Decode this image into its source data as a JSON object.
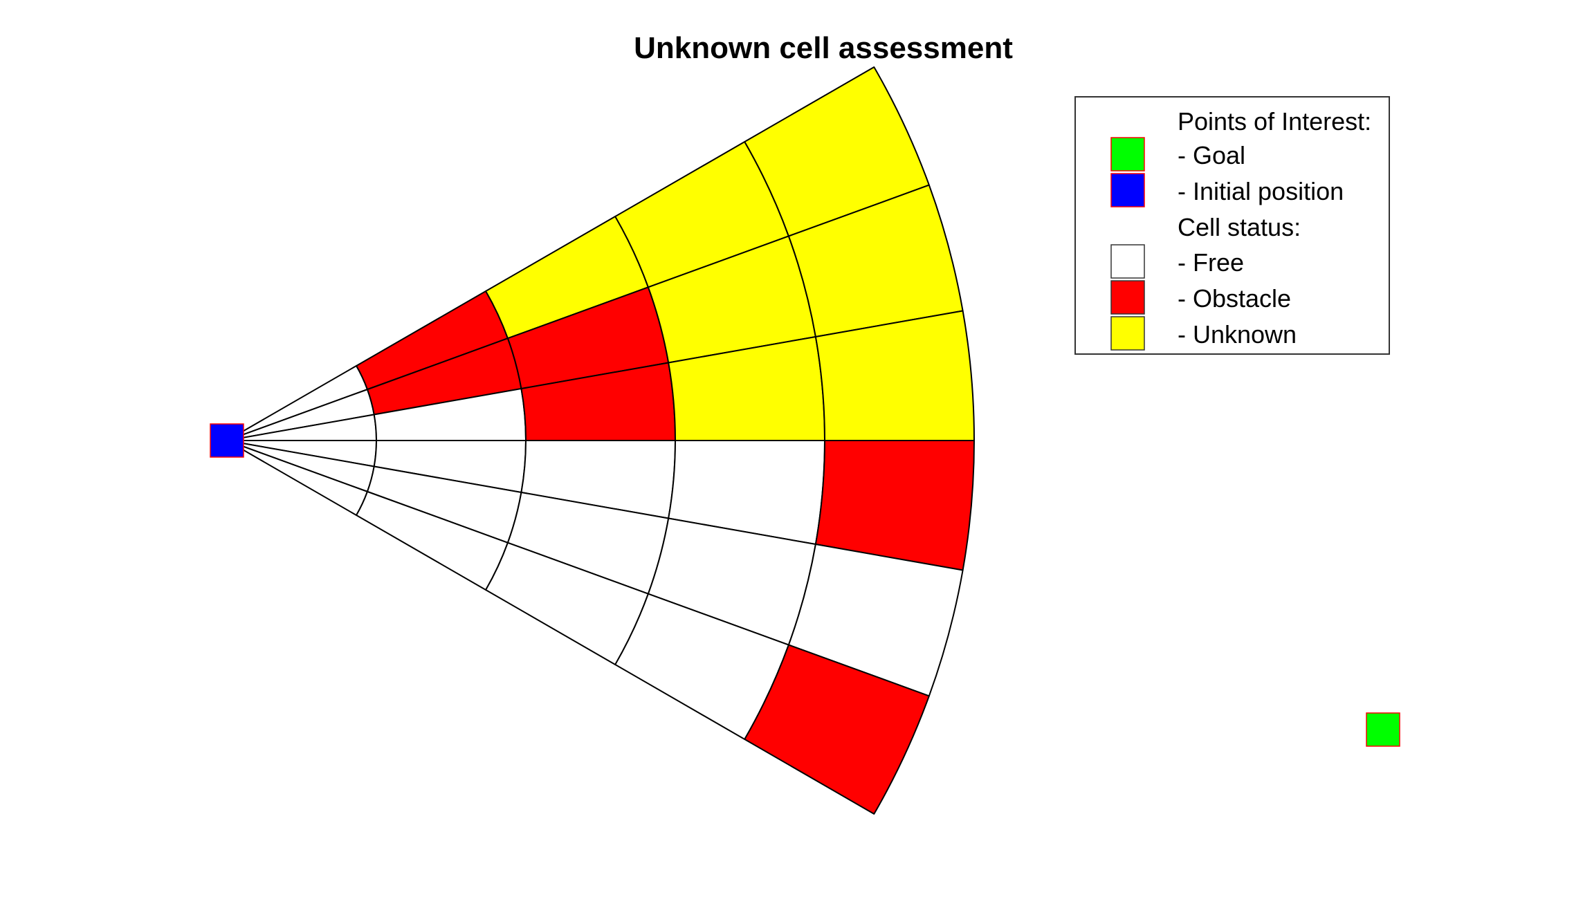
{
  "title": "Unknown cell assessment",
  "colors": {
    "free": "#ffffff",
    "obstacle": "#ff0000",
    "unknown": "#ffff00",
    "goal": "#00ff00",
    "initial": "#0000ff",
    "grid_line": "#000000",
    "marker_edge": "#ff0000"
  },
  "legend": {
    "heading_poi": "Points of Interest:",
    "goal": "- Goal",
    "initial": "- Initial position",
    "heading_cells": "Cell status:",
    "free": "- Free",
    "obstacle": "- Obstacle",
    "unknown": "- Unknown"
  },
  "grid": {
    "sectors": 6,
    "rings": 5,
    "angular_span_deg": 60,
    "status_rows": [
      [
        "free",
        "obstacle",
        "unknown",
        "unknown",
        "unknown"
      ],
      [
        "free",
        "obstacle",
        "obstacle",
        "unknown",
        "unknown"
      ],
      [
        "free",
        "free",
        "obstacle",
        "unknown",
        "unknown"
      ],
      [
        "free",
        "free",
        "free",
        "free",
        "obstacle"
      ],
      [
        "free",
        "free",
        "free",
        "free",
        "free"
      ],
      [
        "free",
        "free",
        "free",
        "free",
        "obstacle"
      ]
    ]
  }
}
